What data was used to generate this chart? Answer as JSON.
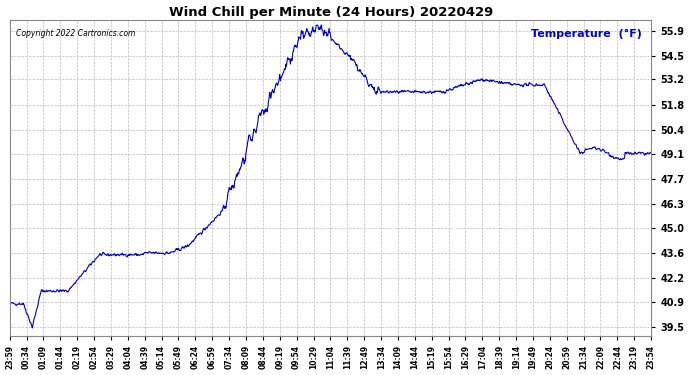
{
  "title": "Wind Chill per Minute (24 Hours) 20220429",
  "copyright_text": "Copyright 2022 Cartronics.com",
  "legend_text": "Temperature  (°F)",
  "line_color": "#0000cc",
  "background_color": "#ffffff",
  "grid_color": "#bbbbbb",
  "yticks": [
    39.5,
    40.9,
    42.2,
    43.6,
    45.0,
    46.3,
    47.7,
    49.1,
    50.4,
    51.8,
    53.2,
    54.5,
    55.9
  ],
  "ylim": [
    39.0,
    56.5
  ],
  "x_labels": [
    "23:59",
    "00:34",
    "01:09",
    "01:44",
    "02:19",
    "02:54",
    "03:29",
    "04:04",
    "04:39",
    "05:14",
    "05:49",
    "06:24",
    "06:59",
    "07:34",
    "08:09",
    "08:44",
    "09:19",
    "09:54",
    "10:29",
    "11:04",
    "11:39",
    "12:49",
    "13:34",
    "14:09",
    "14:44",
    "15:19",
    "15:54",
    "16:29",
    "17:04",
    "18:39",
    "19:14",
    "19:49",
    "20:24",
    "20:59",
    "21:34",
    "22:09",
    "22:44",
    "23:19",
    "23:54"
  ]
}
